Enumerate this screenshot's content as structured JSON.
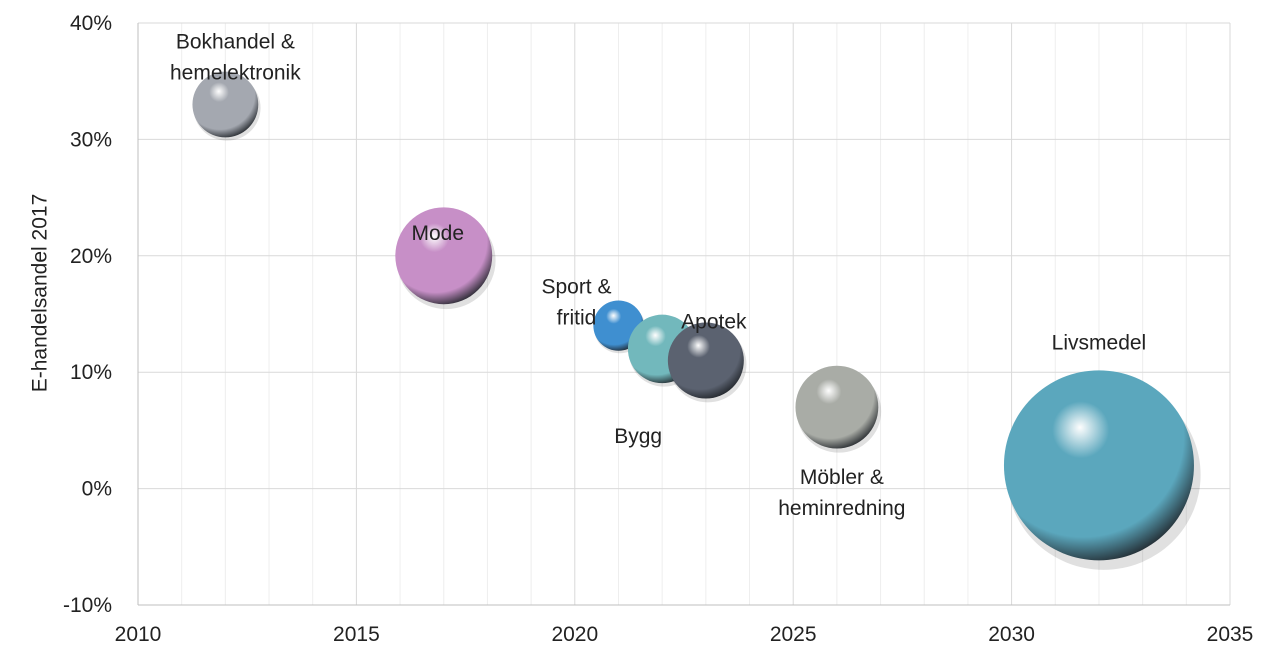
{
  "chart_data": {
    "type": "bubble",
    "title": "",
    "xlabel": "",
    "ylabel": "E-handelsandel 2017",
    "xlim": [
      2010,
      2035
    ],
    "ylim": [
      -0.1,
      0.4
    ],
    "x_ticks": [
      2010,
      2015,
      2020,
      2025,
      2030,
      2035
    ],
    "x_tick_labels": [
      "2010",
      "2015",
      "2020",
      "2025",
      "2030",
      "2035"
    ],
    "y_ticks": [
      -0.1,
      0.0,
      0.1,
      0.2,
      0.3,
      0.4
    ],
    "y_tick_labels": [
      "-10%",
      "0%",
      "10%",
      "20%",
      "30%",
      "40%"
    ],
    "grid": true,
    "minor_x_grid": true,
    "legend": "none",
    "points": [
      {
        "label": [
          "Bokhandel &",
          "hemelektronik"
        ],
        "x": 2012,
        "y": 0.33,
        "size": 0.12,
        "color": "#a4a8b0"
      },
      {
        "label": [
          "Mode"
        ],
        "x": 2017,
        "y": 0.2,
        "size": 0.26,
        "color": "#c78fc7"
      },
      {
        "label": [
          "Sport &",
          "fritid"
        ],
        "x": 2021,
        "y": 0.14,
        "size": 0.07,
        "color": "#3f8fd0"
      },
      {
        "label": [
          "Bygg"
        ],
        "x": 2022,
        "y": 0.12,
        "size": 0.13,
        "color": "#72b8bc"
      },
      {
        "label": [
          "Apotek"
        ],
        "x": 2023,
        "y": 0.11,
        "size": 0.16,
        "color": "#5b6270"
      },
      {
        "label": [
          "Möbler &",
          "heminredning"
        ],
        "x": 2026,
        "y": 0.07,
        "size": 0.19,
        "color": "#a9aca6"
      },
      {
        "label": [
          "Livsmedel"
        ],
        "x": 2032,
        "y": 0.02,
        "size": 1.0,
        "color": "#5ba7bd"
      }
    ]
  }
}
